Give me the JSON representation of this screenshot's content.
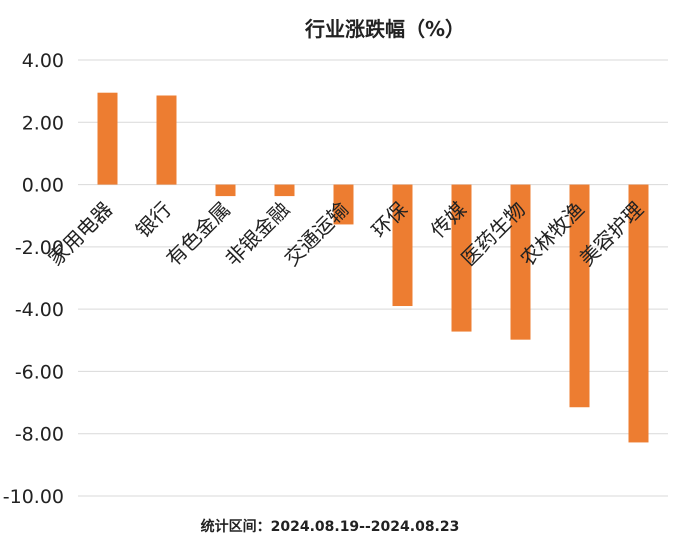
{
  "note": "统计区间：2024.08.19--2024.08.23",
  "chart_data": {
    "type": "bar",
    "title": "行业涨跌幅（%）",
    "xlabel": "",
    "ylabel": "",
    "categories": [
      "家用电器",
      "银行",
      "有色金属",
      "非银金融",
      "交通运输",
      "环保",
      "传媒",
      "医药生物",
      "农林牧渔",
      "美容护理"
    ],
    "values": [
      2.95,
      2.86,
      -0.37,
      -0.37,
      -1.28,
      -3.9,
      -4.72,
      -4.98,
      -7.15,
      -8.28
    ],
    "ylim": [
      -10,
      4
    ],
    "yticks": [
      "4.00",
      "2.00",
      "0.00",
      "-2.00",
      "-4.00",
      "-6.00",
      "-8.00",
      "-10.00"
    ],
    "grid": true,
    "bar_color": "#ED7D31"
  }
}
